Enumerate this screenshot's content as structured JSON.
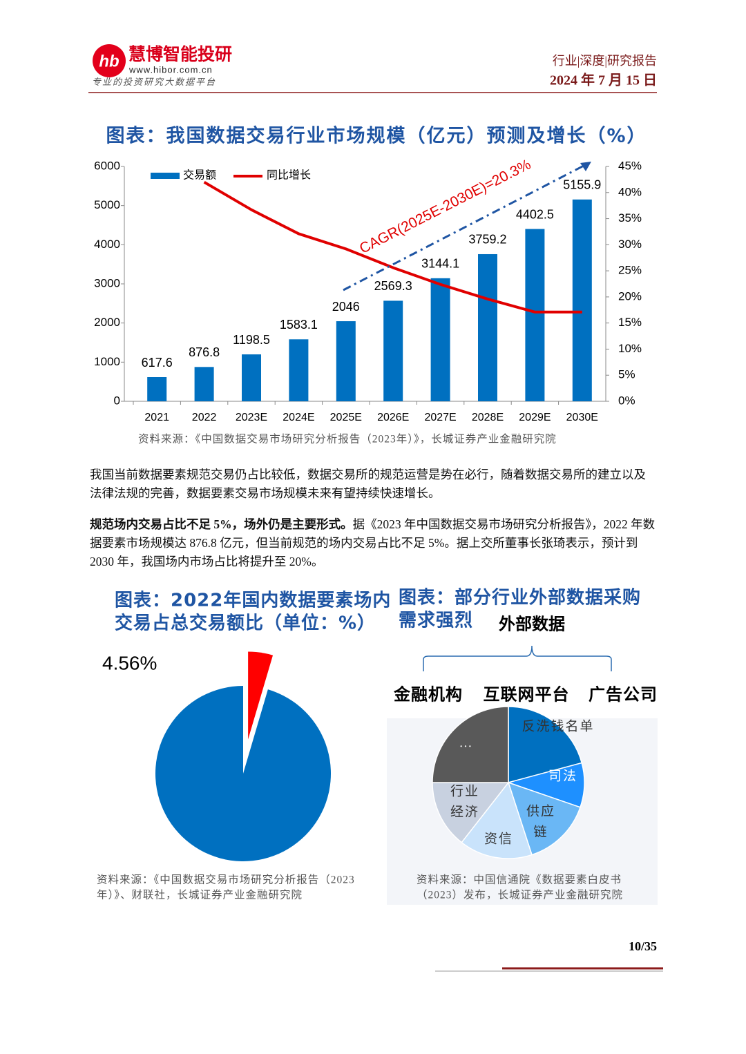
{
  "header": {
    "logo_name": "慧博智能投研",
    "logo_url": "www.hibor.com.cn",
    "logo_slogan": "专业的投资研究大数据平台",
    "category": "行业|深度|研究报告",
    "date": "2024 年 7 月 15 日"
  },
  "chart_data": [
    {
      "type": "bar",
      "title": "图表：我国数据交易行业市场规模（亿元）预测及增长（%）",
      "categories": [
        "2021",
        "2022",
        "2023E",
        "2024E",
        "2025E",
        "2026E",
        "2027E",
        "2028E",
        "2029E",
        "2030E"
      ],
      "series": [
        {
          "name": "交易额",
          "color": "#0070c0",
          "values": [
            617.6,
            876.8,
            1198.5,
            1583.1,
            2046,
            2569.3,
            3144.1,
            3759.2,
            4402.5,
            5155.9
          ]
        },
        {
          "name": "同比增长",
          "color": "#e00000",
          "type": "line",
          "axis": "y2",
          "values": [
            null,
            42.0,
            36.7,
            32.1,
            29.2,
            25.6,
            22.4,
            19.6,
            17.1,
            17.1
          ]
        }
      ],
      "ylim": [
        0,
        6000
      ],
      "yticks": [
        0,
        1000,
        2000,
        3000,
        4000,
        5000,
        6000
      ],
      "y2lim": [
        0,
        45
      ],
      "y2ticks": [
        {
          "value": 0,
          "label": "0%"
        },
        {
          "value": 5,
          "label": "5%"
        },
        {
          "value": 10,
          "label": "10%"
        },
        {
          "value": 15,
          "label": "15%"
        },
        {
          "value": 20,
          "label": "20%"
        },
        {
          "value": 25,
          "label": "25%"
        },
        {
          "value": 30,
          "label": "30%"
        },
        {
          "value": 35,
          "label": "35%"
        },
        {
          "value": 40,
          "label": "40%"
        },
        {
          "value": 45,
          "label": "45%"
        }
      ],
      "annotation": "CAGR(2025E-2030E)=20.3%",
      "legend": "top-left",
      "source": "资料来源：《中国数据交易市场研究分析报告（2023年）》，长城证券产业金融研究院"
    },
    {
      "type": "pie",
      "title": [
        "图表：2022年国内数据要素场内",
        "交易占总交易额比（单位：%）"
      ],
      "categories": [
        null,
        null
      ],
      "values": [
        4.56,
        95.44
      ],
      "value_labels": [
        "4.56%",
        null
      ],
      "colors": [
        "#ff0000",
        "#0070c0"
      ],
      "source": [
        "资料来源：《中国数据交易市场研究分析报告（2023",
        "年）》、财联社，长城证券产业金融研究院"
      ]
    }
  ],
  "paragraphs": [
    {
      "text": "我国当前数据要素规范交易仍占比较低，数据交易所的规范运营是势在必行，随着数据交易所的建立以及法律法规的完善，数据要素交易市场规模未来有望持续快速增长。"
    },
    {
      "bold": "规范场内交易占比不足 5%，场外仍是主要形式。",
      "text": "据《2023 年中国数据交易市场研究分析报告》，2022 年数据要素市场规模达 876.8 亿元，但当前规范的场内交易占比不足 5%。据上交所董事长张琦表示，预计到 2030 年，我国场内市场占比将提升至 20%。"
    }
  ],
  "diagram": {
    "title": [
      "图表：部分行业外部数据采购",
      "需求强烈"
    ],
    "root": "外部数据",
    "groups": [
      "金融机构",
      "互联网平台",
      "广告公司"
    ],
    "segments": [
      [
        "反洗钱名单"
      ],
      [
        "司法"
      ],
      [
        "供应",
        "链"
      ],
      [
        "资信"
      ],
      [
        "行业",
        "经济"
      ],
      [
        "…"
      ]
    ],
    "source": [
      "资料来源：中国信通院《数据要素白皮书",
      "（2023）发布，长城证券产业金融研究院"
    ]
  },
  "footer": {
    "page": "10/35"
  }
}
